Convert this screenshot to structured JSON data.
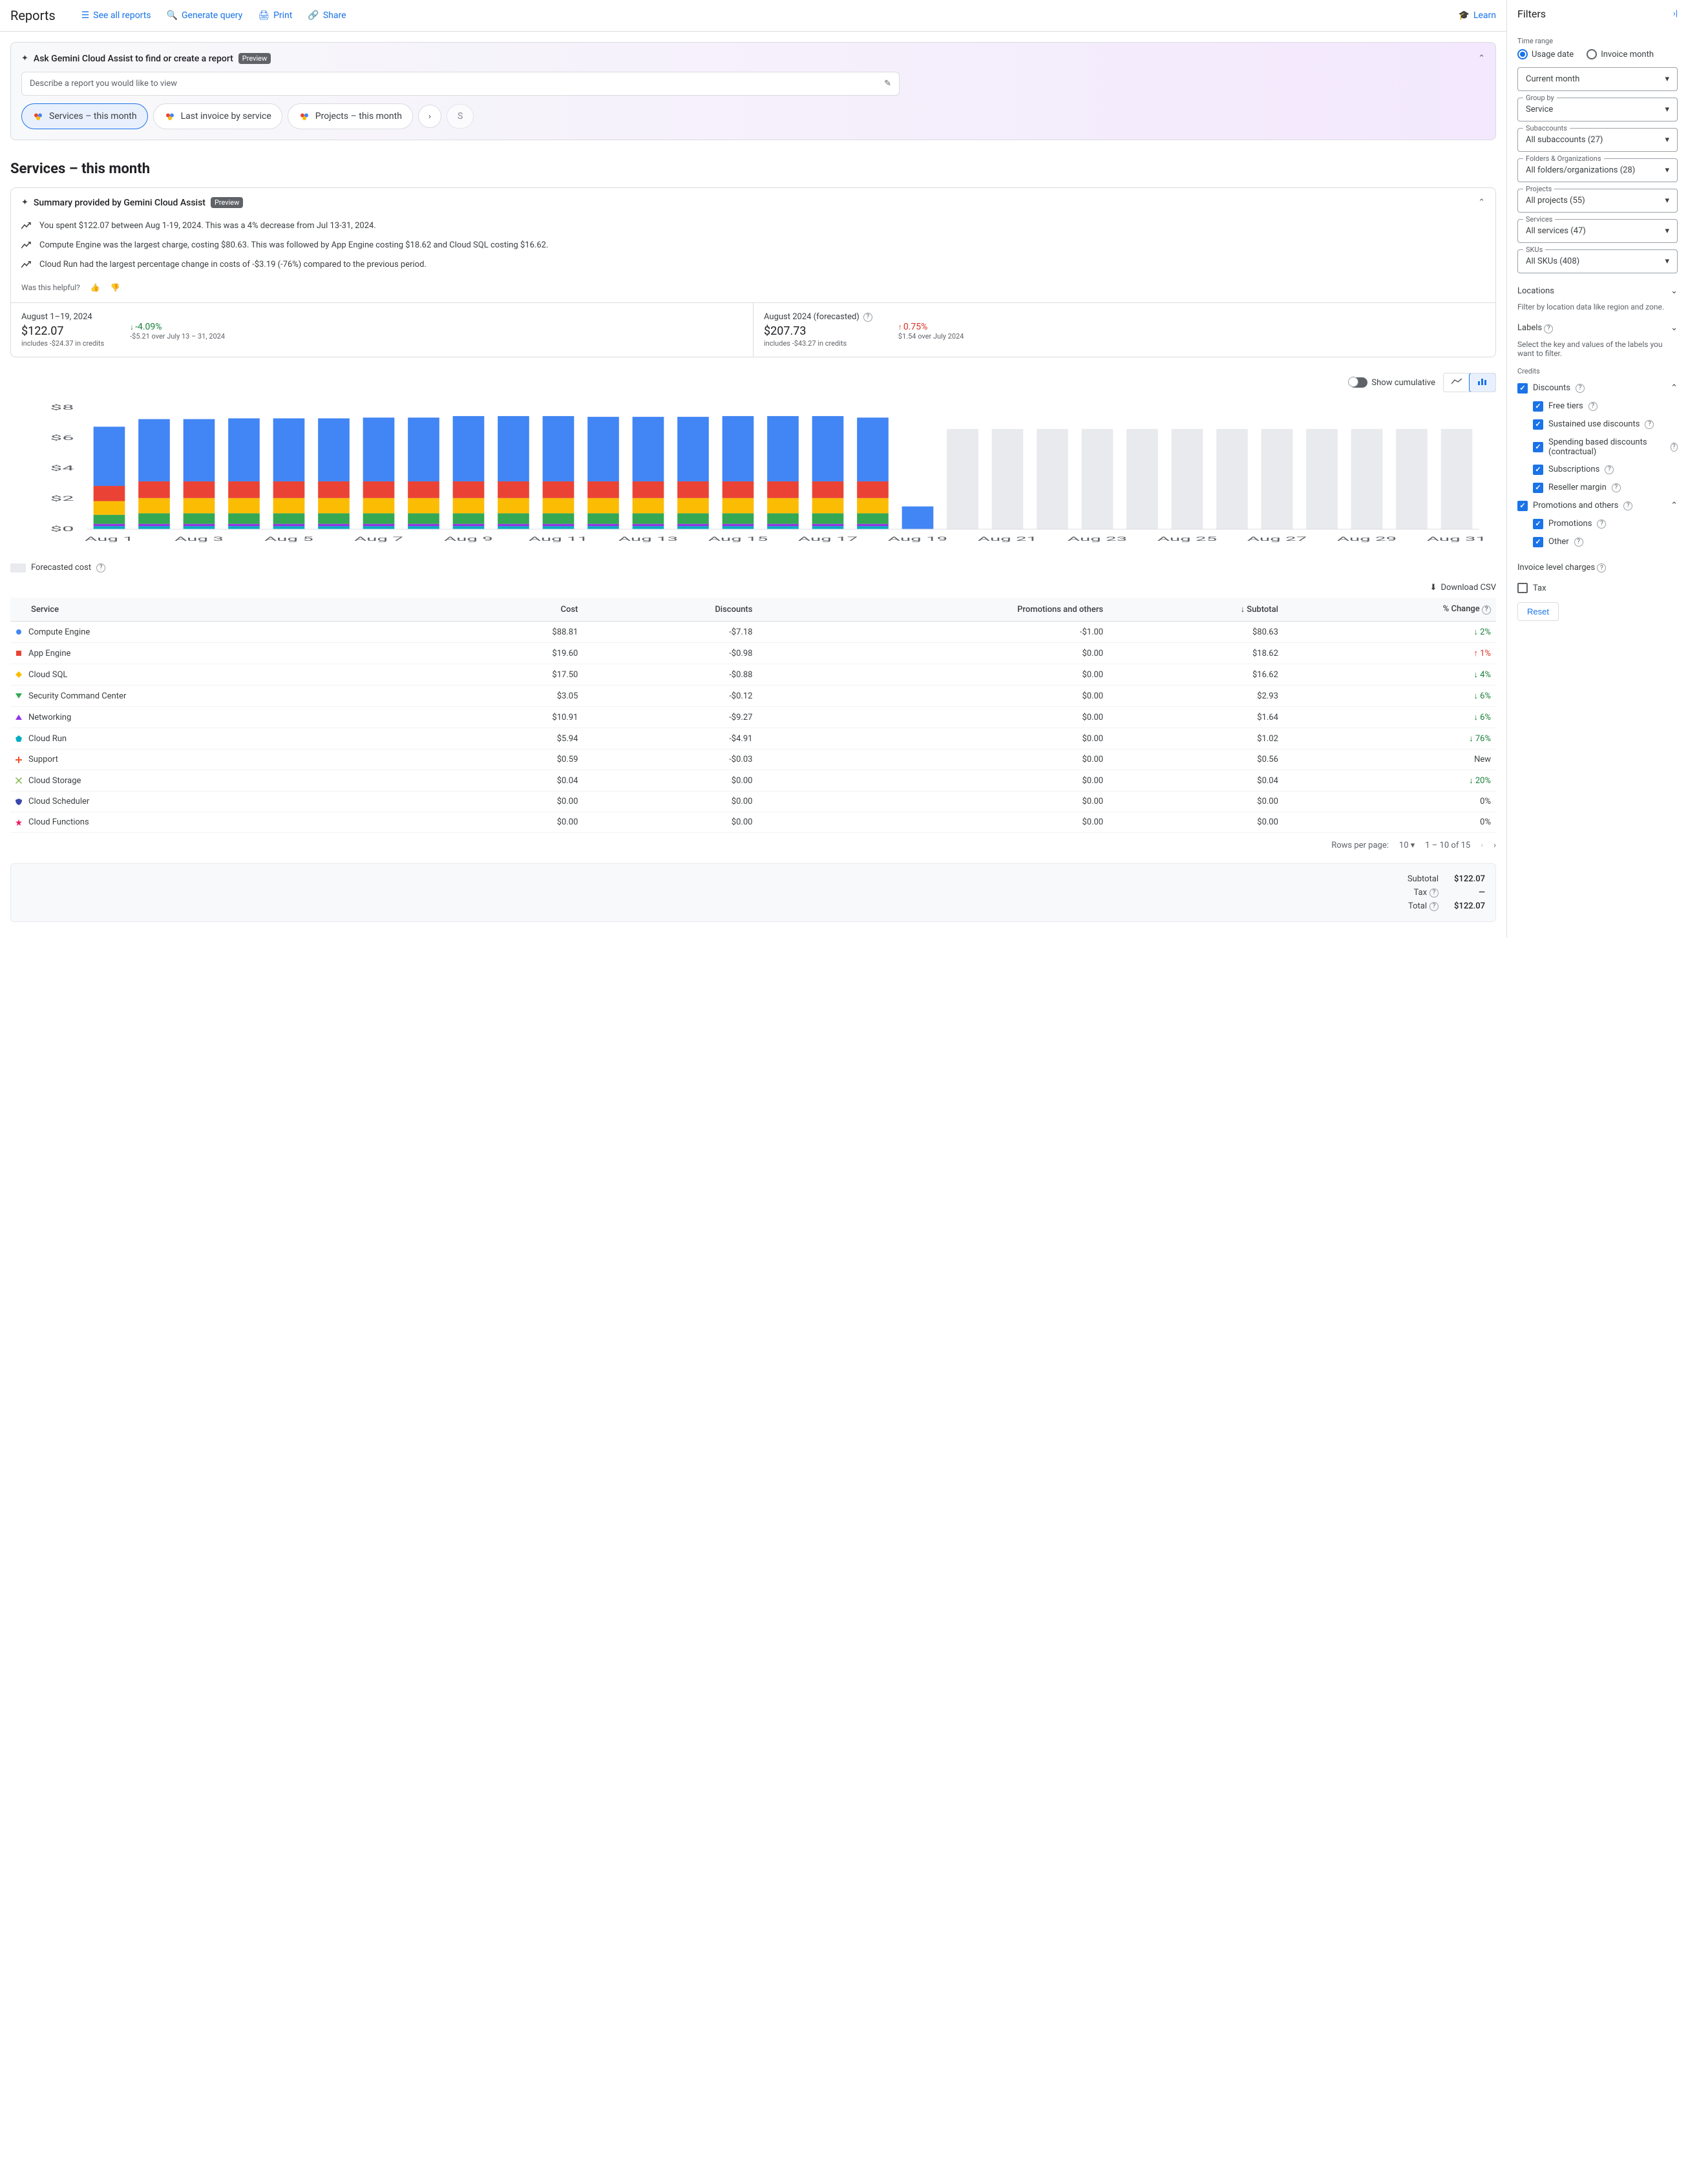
{
  "header": {
    "title": "Reports",
    "links": {
      "see_all": "See all reports",
      "generate": "Generate query",
      "print": "Print",
      "share": "Share",
      "learn": "Learn"
    }
  },
  "gemini": {
    "title": "Ask Gemini Cloud Assist to find or create a report",
    "preview": "Preview",
    "placeholder": "Describe a report you would like to view",
    "chips": [
      "Services – this month",
      "Last invoice by service",
      "Projects – this month"
    ],
    "chip_partial": "S"
  },
  "page_title": "Services – this month",
  "summary": {
    "title": "Summary provided by Gemini Cloud Assist",
    "preview": "Preview",
    "items": [
      "You spent $122.07 between Aug 1-19, 2024. This was a 4% decrease from Jul 13-31, 2024.",
      "Compute Engine was the largest charge, costing $80.63. This was followed by App Engine costing $18.62 and Cloud SQL costing $16.62.",
      "Cloud Run had the largest percentage change in costs of -$3.19 (-76%) compared to the previous period."
    ],
    "helpful": "Was this helpful?"
  },
  "stats": {
    "left": {
      "label": "August 1–19, 2024",
      "value": "$122.07",
      "sub": "includes -$24.37 in credits",
      "pct": "-4.09%",
      "pct_sub": "-$5.21 over July 13 – 31, 2024"
    },
    "right": {
      "label": "August 2024 (forecasted)",
      "value": "$207.73",
      "sub": "includes -$43.27 in credits",
      "pct": "0.75%",
      "pct_sub": "$1.54 over July 2024"
    }
  },
  "chart": {
    "cumulative_label": "Show cumulative",
    "y_ticks": [
      "$0",
      "$2",
      "$4",
      "$6",
      "$8"
    ],
    "x_labels": [
      "Aug 1",
      "Aug 3",
      "Aug 5",
      "Aug 7",
      "Aug 9",
      "Aug 11",
      "Aug 13",
      "Aug 15",
      "Aug 17",
      "Aug 19",
      "Aug 21",
      "Aug 23",
      "Aug 25",
      "Aug 27",
      "Aug 29",
      "Aug 31"
    ],
    "colors": {
      "compute": "#4285f4",
      "appengine": "#ea4335",
      "cloudsql": "#fbbc04",
      "security": "#34a853",
      "networking": "#9334e6",
      "other": "#00acc1",
      "forecast": "#e8eaed"
    },
    "days": [
      {
        "stacks": [
          0.2,
          0.15,
          0.6,
          0.9,
          1.0,
          3.9
        ],
        "forecast": false
      },
      {
        "stacks": [
          0.2,
          0.15,
          0.7,
          1.0,
          1.1,
          4.1
        ],
        "forecast": false
      },
      {
        "stacks": [
          0.2,
          0.15,
          0.7,
          1.0,
          1.1,
          4.1
        ],
        "forecast": false
      },
      {
        "stacks": [
          0.2,
          0.15,
          0.7,
          1.0,
          1.1,
          4.15
        ],
        "forecast": false
      },
      {
        "stacks": [
          0.2,
          0.15,
          0.7,
          1.0,
          1.1,
          4.15
        ],
        "forecast": false
      },
      {
        "stacks": [
          0.2,
          0.15,
          0.7,
          1.0,
          1.1,
          4.15
        ],
        "forecast": false
      },
      {
        "stacks": [
          0.2,
          0.15,
          0.7,
          1.0,
          1.1,
          4.2
        ],
        "forecast": false
      },
      {
        "stacks": [
          0.2,
          0.15,
          0.7,
          1.0,
          1.1,
          4.2
        ],
        "forecast": false
      },
      {
        "stacks": [
          0.2,
          0.15,
          0.7,
          1.0,
          1.1,
          4.3
        ],
        "forecast": false
      },
      {
        "stacks": [
          0.2,
          0.15,
          0.7,
          1.0,
          1.1,
          4.3
        ],
        "forecast": false
      },
      {
        "stacks": [
          0.2,
          0.15,
          0.7,
          1.0,
          1.1,
          4.3
        ],
        "forecast": false
      },
      {
        "stacks": [
          0.2,
          0.15,
          0.7,
          1.0,
          1.1,
          4.25
        ],
        "forecast": false
      },
      {
        "stacks": [
          0.2,
          0.15,
          0.7,
          1.0,
          1.1,
          4.25
        ],
        "forecast": false
      },
      {
        "stacks": [
          0.2,
          0.15,
          0.7,
          1.0,
          1.1,
          4.25
        ],
        "forecast": false
      },
      {
        "stacks": [
          0.2,
          0.15,
          0.7,
          1.0,
          1.1,
          4.3
        ],
        "forecast": false
      },
      {
        "stacks": [
          0.2,
          0.15,
          0.7,
          1.0,
          1.1,
          4.3
        ],
        "forecast": false
      },
      {
        "stacks": [
          0.2,
          0.15,
          0.7,
          1.0,
          1.1,
          4.3
        ],
        "forecast": false
      },
      {
        "stacks": [
          0.2,
          0.15,
          0.7,
          1.0,
          1.1,
          4.2
        ],
        "forecast": false
      },
      {
        "stacks": [
          0.0,
          0.0,
          0.0,
          0.0,
          0.0,
          1.5
        ],
        "forecast": false
      },
      {
        "total": 6.6,
        "forecast": true
      },
      {
        "total": 6.6,
        "forecast": true
      },
      {
        "total": 6.6,
        "forecast": true
      },
      {
        "total": 6.6,
        "forecast": true
      },
      {
        "total": 6.6,
        "forecast": true
      },
      {
        "total": 6.6,
        "forecast": true
      },
      {
        "total": 6.6,
        "forecast": true
      },
      {
        "total": 6.6,
        "forecast": true
      },
      {
        "total": 6.6,
        "forecast": true
      },
      {
        "total": 6.6,
        "forecast": true
      },
      {
        "total": 6.6,
        "forecast": true
      },
      {
        "total": 6.6,
        "forecast": true
      }
    ],
    "legend_forecast": "Forecasted cost"
  },
  "download_csv": "Download CSV",
  "table": {
    "headers": [
      "Service",
      "Cost",
      "Discounts",
      "Promotions and others",
      "Subtotal",
      "% Change"
    ],
    "rows": [
      {
        "marker": "circle",
        "color": "#4285f4",
        "svc": "Compute Engine",
        "cost": "$88.81",
        "disc": "-$7.18",
        "promo": "-$1.00",
        "sub": "$80.63",
        "chg": "2%",
        "dir": "down"
      },
      {
        "marker": "square",
        "color": "#ea4335",
        "svc": "App Engine",
        "cost": "$19.60",
        "disc": "-$0.98",
        "promo": "$0.00",
        "sub": "$18.62",
        "chg": "1%",
        "dir": "up"
      },
      {
        "marker": "diamond",
        "color": "#fbbc04",
        "svc": "Cloud SQL",
        "cost": "$17.50",
        "disc": "-$0.88",
        "promo": "$0.00",
        "sub": "$16.62",
        "chg": "4%",
        "dir": "down"
      },
      {
        "marker": "tri-down",
        "color": "#34a853",
        "svc": "Security Command Center",
        "cost": "$3.05",
        "disc": "-$0.12",
        "promo": "$0.00",
        "sub": "$2.93",
        "chg": "6%",
        "dir": "down"
      },
      {
        "marker": "tri-up",
        "color": "#9334e6",
        "svc": "Networking",
        "cost": "$10.91",
        "disc": "-$9.27",
        "promo": "$0.00",
        "sub": "$1.64",
        "chg": "6%",
        "dir": "down"
      },
      {
        "marker": "pentagon",
        "color": "#00acc1",
        "svc": "Cloud Run",
        "cost": "$5.94",
        "disc": "-$4.91",
        "promo": "$0.00",
        "sub": "$1.02",
        "chg": "76%",
        "dir": "down"
      },
      {
        "marker": "plus",
        "color": "#f4511e",
        "svc": "Support",
        "cost": "$0.59",
        "disc": "-$0.03",
        "promo": "$0.00",
        "sub": "$0.56",
        "chg": "New",
        "dir": "none"
      },
      {
        "marker": "cross",
        "color": "#7cb342",
        "svc": "Cloud Storage",
        "cost": "$0.04",
        "disc": "$0.00",
        "promo": "$0.00",
        "sub": "$0.04",
        "chg": "20%",
        "dir": "down"
      },
      {
        "marker": "shield",
        "color": "#3949ab",
        "svc": "Cloud Scheduler",
        "cost": "$0.00",
        "disc": "$0.00",
        "promo": "$0.00",
        "sub": "$0.00",
        "chg": "0%",
        "dir": "none"
      },
      {
        "marker": "star",
        "color": "#e91e63",
        "svc": "Cloud Functions",
        "cost": "$0.00",
        "disc": "$0.00",
        "promo": "$0.00",
        "sub": "$0.00",
        "chg": "0%",
        "dir": "none"
      }
    ]
  },
  "paginator": {
    "rows_label": "Rows per page:",
    "rows_value": "10",
    "range": "1 – 10 of 15"
  },
  "totals": {
    "subtotal_label": "Subtotal",
    "subtotal": "$122.07",
    "tax_label": "Tax",
    "tax": "—",
    "total_label": "Total",
    "total": "$122.07"
  },
  "filters": {
    "title": "Filters",
    "time_range": "Time range",
    "usage_date": "Usage date",
    "invoice_month": "Invoice month",
    "current_month": "Current month",
    "group_by_label": "Group by",
    "group_by": "Service",
    "subaccounts_label": "Subaccounts",
    "subaccounts": "All subaccounts (27)",
    "folders_label": "Folders & Organizations",
    "folders": "All folders/organizations (28)",
    "projects_label": "Projects",
    "projects": "All projects (55)",
    "services_label": "Services",
    "services": "All services (47)",
    "skus_label": "SKUs",
    "skus": "All SKUs (408)",
    "locations": "Locations",
    "locations_desc": "Filter by location data like region and zone.",
    "labels": "Labels",
    "labels_desc": "Select the key and values of the labels you want to filter.",
    "credits": "Credits",
    "discounts": "Discounts",
    "free_tiers": "Free tiers",
    "sustained": "Sustained use discounts",
    "spending": "Spending based discounts (contractual)",
    "subscriptions": "Subscriptions",
    "reseller": "Reseller margin",
    "promotions_others": "Promotions and others",
    "promotions": "Promotions",
    "other": "Other",
    "invoice_level": "Invoice level charges",
    "tax": "Tax",
    "reset": "Reset"
  }
}
